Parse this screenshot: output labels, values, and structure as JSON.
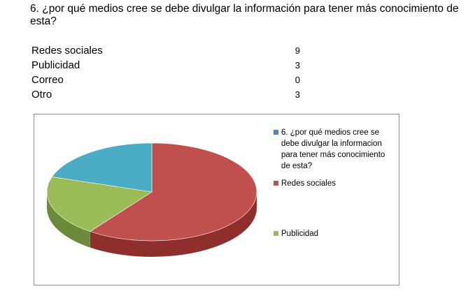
{
  "question": "6. ¿por qué medios cree se debe divulgar la información para tener más conocimiento de esta?",
  "table": [
    {
      "label": "Redes sociales",
      "value": "9"
    },
    {
      "label": "Publicidad",
      "value": "3"
    },
    {
      "label": "Correo",
      "value": "0"
    },
    {
      "label": "Otro",
      "value": "3"
    }
  ],
  "chart_data": {
    "type": "pie",
    "style": "3d",
    "legend_position": "right",
    "slices": [
      {
        "name": "Redes sociales",
        "value": 9,
        "color": "#C0504D",
        "side_color": "#8E2F2D"
      },
      {
        "name": "Publicidad",
        "value": 3,
        "color": "#9BBB59",
        "side_color": "#6C8A3A"
      },
      {
        "name": "",
        "value": 3,
        "color": "#4BACC6",
        "side_color": "#2F7F95"
      }
    ],
    "legend": [
      {
        "label": "6. ¿por qué medios cree se debe divulgar la informacion para tener más conocimiento de esta?",
        "color": "#4F81BD"
      },
      {
        "label": "Redes sociales",
        "color": "#C0504D"
      },
      {
        "label": "Publicidad",
        "color": "#9BBB59"
      }
    ]
  }
}
